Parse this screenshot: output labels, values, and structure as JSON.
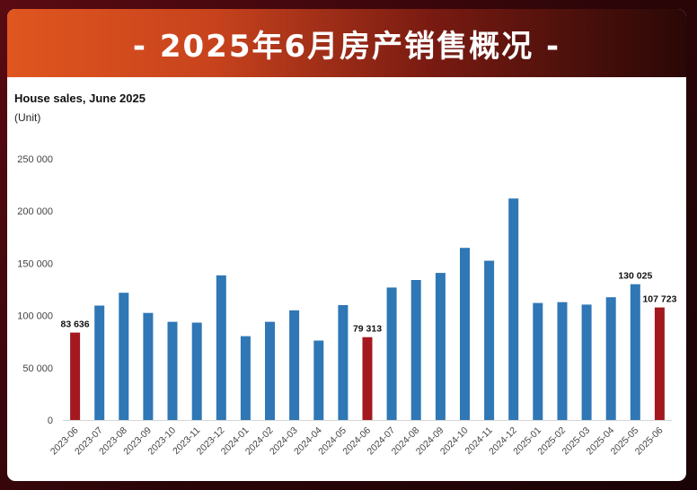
{
  "banner": {
    "title": "- 2025年6月房产销售概况 -"
  },
  "chart_data": {
    "type": "bar",
    "title": "House sales, June 2025",
    "ylabel": "(Unit)",
    "xlabel": "",
    "ylim": [
      0,
      250000
    ],
    "y_ticks": [
      "250 000",
      "200 000",
      "150 000",
      "100 000",
      "50 000",
      "0"
    ],
    "y_tick_values": [
      250000,
      200000,
      150000,
      100000,
      50000,
      0
    ],
    "grid": false,
    "colors": {
      "default": "#2f77b5",
      "highlight": "#a3191f"
    },
    "categories": [
      "2023-06",
      "2023-07",
      "2023-08",
      "2023-09",
      "2023-10",
      "2023-11",
      "2023-12",
      "2024-01",
      "2024-02",
      "2024-03",
      "2024-04",
      "2024-05",
      "2024-06",
      "2024-07",
      "2024-08",
      "2024-09",
      "2024-10",
      "2024-11",
      "2024-12",
      "2025-01",
      "2025-02",
      "2025-03",
      "2025-04",
      "2025-05",
      "2025-06"
    ],
    "values": [
      83636,
      109500,
      121800,
      102500,
      94000,
      93200,
      138500,
      80200,
      94000,
      105000,
      76000,
      110000,
      79313,
      126800,
      134000,
      140800,
      164800,
      152500,
      212000,
      112000,
      112800,
      110500,
      117500,
      130025,
      107723
    ],
    "highlighted": [
      "2023-06",
      "2024-06",
      "2025-06"
    ],
    "data_labels": [
      {
        "category": "2023-06",
        "text": "83 636"
      },
      {
        "category": "2024-06",
        "text": "79 313"
      },
      {
        "category": "2025-05",
        "text": "130 025"
      },
      {
        "category": "2025-06",
        "text": "107 723"
      }
    ]
  }
}
